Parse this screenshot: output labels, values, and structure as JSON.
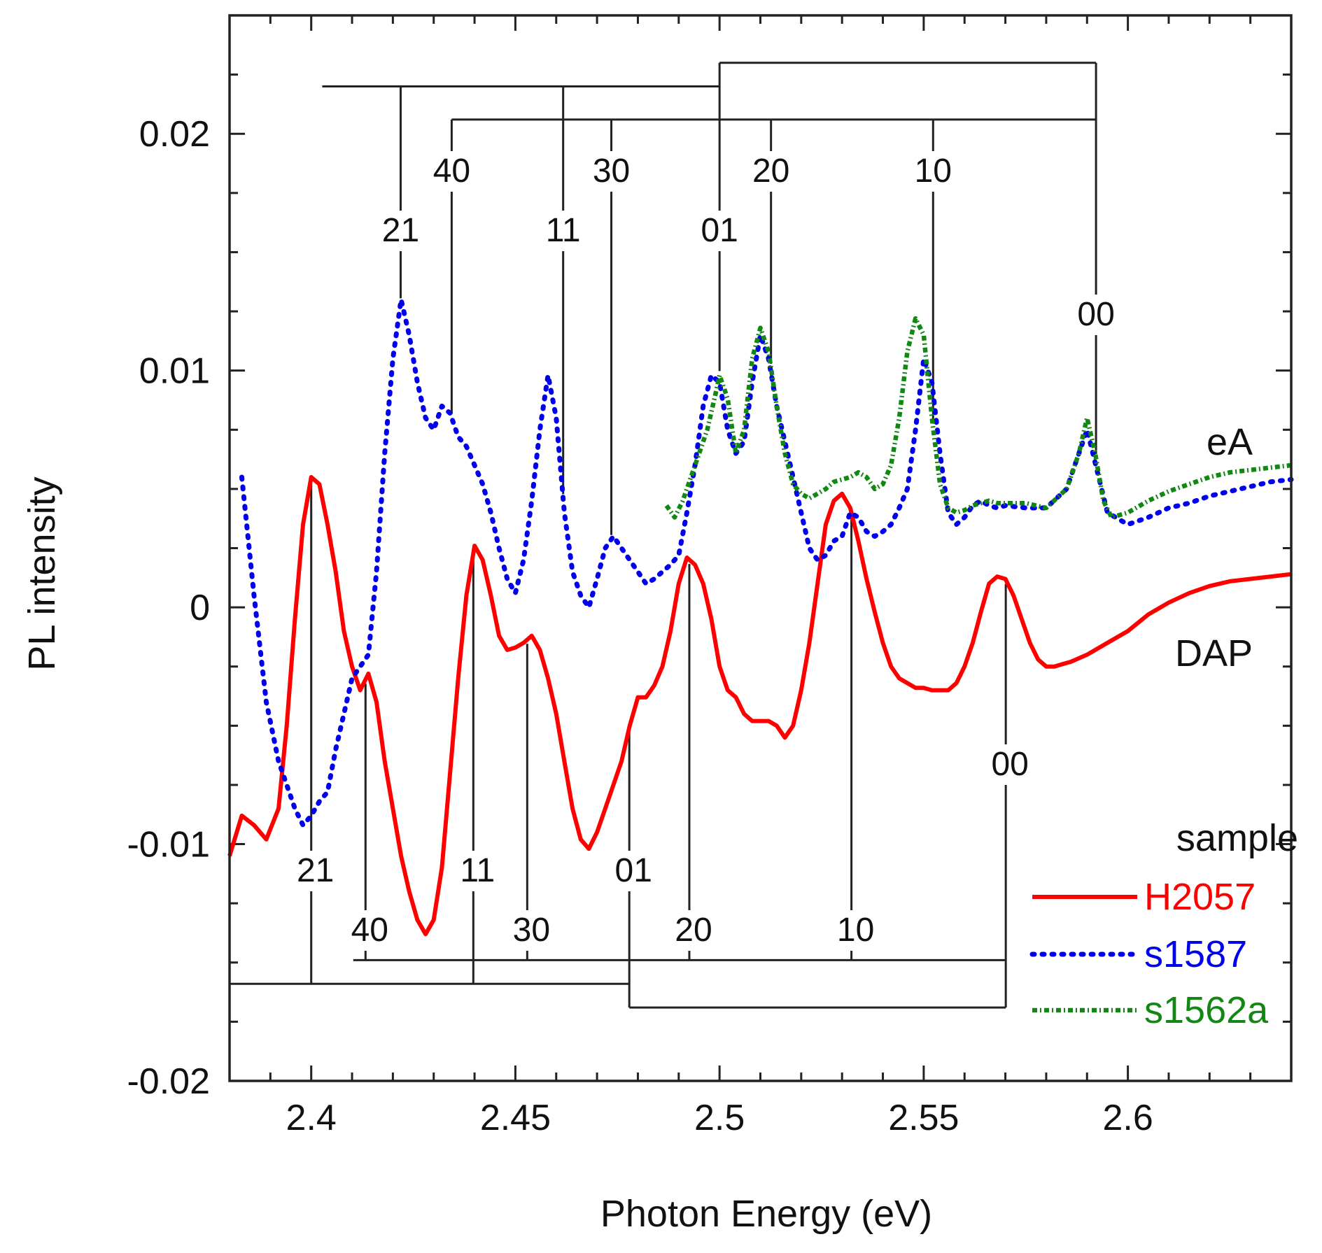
{
  "chart_data": {
    "type": "line",
    "xlabel": "Photon Energy (eV)",
    "ylabel": "PL intensity",
    "xlim": [
      2.38,
      2.64
    ],
    "ylim": [
      -0.02,
      0.025
    ],
    "xticks": [
      {
        "value": 2.4,
        "label": "2.4"
      },
      {
        "value": 2.45,
        "label": "2.45"
      },
      {
        "value": 2.5,
        "label": "2.5"
      },
      {
        "value": 2.55,
        "label": "2.55"
      },
      {
        "value": 2.6,
        "label": "2.6"
      }
    ],
    "yticks": [
      {
        "value": -0.02,
        "label": "-0.02"
      },
      {
        "value": -0.01,
        "label": "-0.01"
      },
      {
        "value": 0,
        "label": "0"
      },
      {
        "value": 0.01,
        "label": "0.01"
      },
      {
        "value": 0.02,
        "label": "0.02"
      }
    ],
    "legend_title": "sample",
    "legend_position": "bottom-right",
    "series": [
      {
        "name": "H2057",
        "color": "#ff0000",
        "style": "solid",
        "x": [
          2.38,
          2.383,
          2.386,
          2.389,
          2.392,
          2.394,
          2.396,
          2.398,
          2.4,
          2.402,
          2.404,
          2.406,
          2.408,
          2.41,
          2.412,
          2.414,
          2.416,
          2.418,
          2.42,
          2.422,
          2.424,
          2.426,
          2.428,
          2.43,
          2.432,
          2.434,
          2.436,
          2.438,
          2.44,
          2.442,
          2.444,
          2.446,
          2.448,
          2.45,
          2.452,
          2.454,
          2.456,
          2.458,
          2.46,
          2.462,
          2.464,
          2.466,
          2.468,
          2.47,
          2.472,
          2.474,
          2.476,
          2.478,
          2.48,
          2.482,
          2.484,
          2.486,
          2.488,
          2.49,
          2.492,
          2.494,
          2.496,
          2.498,
          2.5,
          2.502,
          2.504,
          2.506,
          2.508,
          2.51,
          2.512,
          2.514,
          2.516,
          2.518,
          2.52,
          2.522,
          2.524,
          2.526,
          2.528,
          2.53,
          2.532,
          2.534,
          2.536,
          2.538,
          2.54,
          2.542,
          2.544,
          2.546,
          2.548,
          2.55,
          2.552,
          2.554,
          2.556,
          2.558,
          2.56,
          2.562,
          2.564,
          2.566,
          2.568,
          2.57,
          2.572,
          2.574,
          2.576,
          2.578,
          2.58,
          2.582,
          2.584,
          2.586,
          2.59,
          2.595,
          2.6,
          2.605,
          2.61,
          2.615,
          2.62,
          2.625,
          2.63,
          2.635,
          2.64
        ],
        "y": [
          -0.0105,
          -0.0088,
          -0.0092,
          -0.0098,
          -0.0085,
          -0.005,
          -0.0005,
          0.0035,
          0.0055,
          0.0052,
          0.0035,
          0.0015,
          -0.001,
          -0.0025,
          -0.0035,
          -0.0028,
          -0.004,
          -0.0065,
          -0.0085,
          -0.0105,
          -0.012,
          -0.0132,
          -0.0138,
          -0.0132,
          -0.011,
          -0.007,
          -0.003,
          0.0005,
          0.0026,
          0.002,
          0.0005,
          -0.0012,
          -0.0018,
          -0.0017,
          -0.0015,
          -0.0012,
          -0.0018,
          -0.003,
          -0.0045,
          -0.0065,
          -0.0085,
          -0.0098,
          -0.0102,
          -0.0095,
          -0.0085,
          -0.0075,
          -0.0065,
          -0.005,
          -0.0038,
          -0.0038,
          -0.0033,
          -0.0025,
          -0.001,
          0.001,
          0.0021,
          0.0018,
          0.001,
          -0.0005,
          -0.0025,
          -0.0035,
          -0.0038,
          -0.0045,
          -0.0048,
          -0.0048,
          -0.0048,
          -0.005,
          -0.0055,
          -0.005,
          -0.0035,
          -0.0015,
          0.001,
          0.0035,
          0.0045,
          0.0048,
          0.0042,
          0.0028,
          0.0012,
          -0.0002,
          -0.0015,
          -0.0025,
          -0.003,
          -0.0032,
          -0.0034,
          -0.0034,
          -0.0035,
          -0.0035,
          -0.0035,
          -0.0032,
          -0.0025,
          -0.0015,
          -0.0002,
          0.001,
          0.0013,
          0.0012,
          0.0005,
          -0.0005,
          -0.0015,
          -0.0022,
          -0.0025,
          -0.0025,
          -0.0024,
          -0.0023,
          -0.002,
          -0.0015,
          -0.001,
          -0.0003,
          0.0002,
          0.0006,
          0.0009,
          0.0011,
          0.0012,
          0.0013,
          0.0014
        ]
      },
      {
        "name": "s1587",
        "color": "#0000ee",
        "style": "dotted",
        "x": [
          2.383,
          2.386,
          2.389,
          2.392,
          2.394,
          2.396,
          2.398,
          2.4,
          2.402,
          2.404,
          2.406,
          2.408,
          2.41,
          2.412,
          2.414,
          2.416,
          2.418,
          2.42,
          2.422,
          2.424,
          2.426,
          2.428,
          2.43,
          2.432,
          2.434,
          2.436,
          2.438,
          2.44,
          2.442,
          2.444,
          2.446,
          2.448,
          2.45,
          2.452,
          2.454,
          2.456,
          2.458,
          2.46,
          2.462,
          2.464,
          2.466,
          2.468,
          2.47,
          2.472,
          2.474,
          2.476,
          2.478,
          2.48,
          2.482,
          2.484,
          2.486,
          2.488,
          2.49,
          2.492,
          2.494,
          2.496,
          2.498,
          2.5,
          2.502,
          2.504,
          2.506,
          2.508,
          2.51,
          2.512,
          2.514,
          2.516,
          2.518,
          2.52,
          2.522,
          2.524,
          2.526,
          2.528,
          2.53,
          2.532,
          2.534,
          2.536,
          2.538,
          2.54,
          2.542,
          2.544,
          2.546,
          2.548,
          2.55,
          2.552,
          2.554,
          2.556,
          2.558,
          2.56,
          2.562,
          2.564,
          2.566,
          2.568,
          2.57,
          2.575,
          2.58,
          2.585,
          2.59,
          2.595,
          2.6,
          2.605,
          2.61,
          2.615,
          2.62,
          2.625,
          2.63,
          2.635,
          2.64
        ],
        "y": [
          0.0055,
          0.0005,
          -0.004,
          -0.0065,
          -0.0075,
          -0.0085,
          -0.0092,
          -0.0088,
          -0.0082,
          -0.0078,
          -0.006,
          -0.0045,
          -0.003,
          -0.0025,
          -0.002,
          0.0015,
          0.0065,
          0.0105,
          0.013,
          0.0115,
          0.0095,
          0.008,
          0.0075,
          0.0085,
          0.0082,
          0.0072,
          0.0068,
          0.006,
          0.0052,
          0.004,
          0.0025,
          0.0012,
          0.0006,
          0.002,
          0.0045,
          0.0075,
          0.0098,
          0.008,
          0.004,
          0.0015,
          0.0005,
          0.0,
          0.0012,
          0.0025,
          0.003,
          0.0025,
          0.002,
          0.0015,
          0.001,
          0.0012,
          0.0015,
          0.0018,
          0.0022,
          0.004,
          0.006,
          0.0085,
          0.0098,
          0.0095,
          0.0075,
          0.0065,
          0.007,
          0.0095,
          0.0115,
          0.0105,
          0.0085,
          0.007,
          0.0055,
          0.004,
          0.0025,
          0.002,
          0.0022,
          0.0028,
          0.003,
          0.004,
          0.0038,
          0.0032,
          0.003,
          0.0032,
          0.0035,
          0.0042,
          0.005,
          0.0075,
          0.0105,
          0.0095,
          0.0065,
          0.004,
          0.0035,
          0.0038,
          0.0043,
          0.0045,
          0.0043,
          0.0042,
          0.0043,
          0.0042,
          0.0042,
          0.005,
          0.0075,
          0.004,
          0.0035,
          0.0038,
          0.0042,
          0.0044,
          0.0047,
          0.0049,
          0.0051,
          0.0053,
          0.0054
        ]
      },
      {
        "name": "s1562a",
        "color": "#118811",
        "style": "dashdot",
        "x": [
          2.487,
          2.489,
          2.491,
          2.493,
          2.495,
          2.497,
          2.499,
          2.5,
          2.502,
          2.504,
          2.506,
          2.508,
          2.51,
          2.512,
          2.514,
          2.516,
          2.518,
          2.52,
          2.522,
          2.524,
          2.526,
          2.528,
          2.53,
          2.532,
          2.534,
          2.536,
          2.538,
          2.54,
          2.542,
          2.544,
          2.546,
          2.548,
          2.55,
          2.552,
          2.554,
          2.556,
          2.558,
          2.56,
          2.562,
          2.564,
          2.566,
          2.568,
          2.57,
          2.575,
          2.58,
          2.585,
          2.588,
          2.59,
          2.592,
          2.594,
          2.596,
          2.6,
          2.605,
          2.61,
          2.615,
          2.62,
          2.625,
          2.63,
          2.635,
          2.64
        ],
        "y": [
          0.0043,
          0.0038,
          0.0045,
          0.0055,
          0.0065,
          0.0075,
          0.009,
          0.0098,
          0.0088,
          0.0065,
          0.0075,
          0.0105,
          0.0118,
          0.0108,
          0.0085,
          0.0065,
          0.0052,
          0.0048,
          0.0046,
          0.0048,
          0.005,
          0.0053,
          0.0054,
          0.0055,
          0.0057,
          0.0055,
          0.005,
          0.0052,
          0.006,
          0.008,
          0.0108,
          0.0122,
          0.0115,
          0.008,
          0.0052,
          0.0042,
          0.004,
          0.0041,
          0.0043,
          0.0044,
          0.0045,
          0.0044,
          0.0044,
          0.0044,
          0.0042,
          0.005,
          0.0065,
          0.008,
          0.0065,
          0.0045,
          0.0038,
          0.004,
          0.0045,
          0.0049,
          0.0052,
          0.0055,
          0.0057,
          0.0058,
          0.0059,
          0.006
        ]
      }
    ],
    "top_assignments": {
      "curve_tag": "eA",
      "peaks": [
        {
          "label": "21",
          "x": 2.4219
        },
        {
          "label": "40",
          "x": 2.4344
        },
        {
          "label": "11",
          "x": 2.4617
        },
        {
          "label": "30",
          "x": 2.4735
        },
        {
          "label": "01",
          "x": 2.5
        },
        {
          "label": "20",
          "x": 2.5126
        },
        {
          "label": "10",
          "x": 2.5523
        },
        {
          "label": "00",
          "x": 2.5922
        }
      ],
      "progressions": [
        {
          "from": 2.4027,
          "to": 2.5,
          "level": 0.022,
          "drops": [
            2.4219,
            2.4617
          ]
        },
        {
          "from": 2.4344,
          "to": 2.5922,
          "level": 0.0206,
          "drops": [
            2.4344,
            2.4735,
            2.5126,
            2.5523
          ]
        },
        {
          "from": 2.5,
          "to": 2.5922,
          "level": 0.023,
          "drops": [
            2.5,
            2.5922
          ]
        }
      ]
    },
    "bottom_assignments": {
      "curve_tag": "DAP",
      "peaks": [
        {
          "label": "21",
          "x": 2.4
        },
        {
          "label": "40",
          "x": 2.4133
        },
        {
          "label": "11",
          "x": 2.4397
        },
        {
          "label": "30",
          "x": 2.4529
        },
        {
          "label": "01",
          "x": 2.4779
        },
        {
          "label": "20",
          "x": 2.4926
        },
        {
          "label": "10",
          "x": 2.5323
        },
        {
          "label": "00",
          "x": 2.5701
        }
      ],
      "progressions": [
        {
          "from": 2.38,
          "to": 2.4779,
          "level": -0.0159,
          "drops": [
            2.4,
            2.4397
          ]
        },
        {
          "from": 2.4103,
          "to": 2.5701,
          "level": -0.0149,
          "drops": [
            2.4133,
            2.4529,
            2.4926,
            2.5323
          ]
        },
        {
          "from": 2.4779,
          "to": 2.5701,
          "level": -0.0169,
          "drops": [
            2.4779,
            2.5701
          ]
        }
      ]
    }
  }
}
